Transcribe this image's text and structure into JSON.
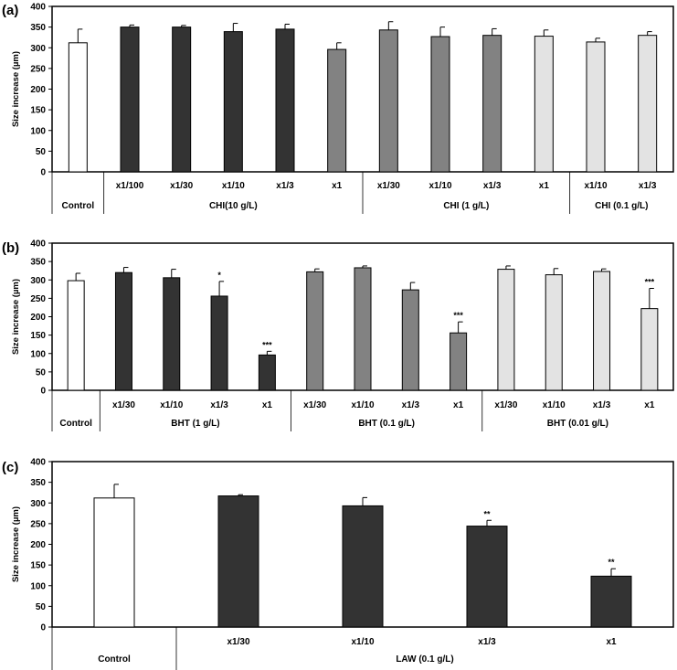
{
  "colors": {
    "control": "#ffffff",
    "dark": "#333333",
    "mid": "#828282",
    "light": "#e3e3e3",
    "stroke": "#000000"
  },
  "chart_data": [
    {
      "type": "bar",
      "label": "(a)",
      "ylabel": "Size increase (µm)",
      "ylim": [
        0,
        400
      ],
      "yticks": [
        0,
        50,
        100,
        150,
        200,
        250,
        300,
        350,
        400
      ],
      "bars": [
        {
          "category": "",
          "value": 312,
          "error": 33,
          "color": "control",
          "sig": ""
        },
        {
          "category": "x1/100",
          "value": 350,
          "error": 5,
          "color": "dark",
          "sig": ""
        },
        {
          "category": "x1/30",
          "value": 350,
          "error": 4,
          "color": "dark",
          "sig": ""
        },
        {
          "category": "x1/10",
          "value": 339,
          "error": 20,
          "color": "dark",
          "sig": ""
        },
        {
          "category": "x1/3",
          "value": 345,
          "error": 12,
          "color": "dark",
          "sig": ""
        },
        {
          "category": "x1",
          "value": 296,
          "error": 16,
          "color": "mid",
          "sig": ""
        },
        {
          "category": "x1/30",
          "value": 343,
          "error": 20,
          "color": "mid",
          "sig": ""
        },
        {
          "category": "x1/10",
          "value": 327,
          "error": 23,
          "color": "mid",
          "sig": ""
        },
        {
          "category": "x1/3",
          "value": 330,
          "error": 16,
          "color": "mid",
          "sig": ""
        },
        {
          "category": "x1",
          "value": 328,
          "error": 15,
          "color": "light",
          "sig": ""
        },
        {
          "category": "x1/10",
          "value": 314,
          "error": 9,
          "color": "light",
          "sig": ""
        },
        {
          "category": "x1/3",
          "value": 330,
          "error": 9,
          "color": "light",
          "sig": ""
        }
      ],
      "groups": [
        {
          "label": "Control",
          "start": 0,
          "end": 0
        },
        {
          "label": "CHI(10 g/L)",
          "start": 1,
          "end": 5
        },
        {
          "label": "CHI (1 g/L)",
          "start": 6,
          "end": 9
        },
        {
          "label": "CHI (0.1 g/L)",
          "start": 10,
          "end": 11
        }
      ]
    },
    {
      "type": "bar",
      "label": "(b)",
      "ylabel": "Size increase (µm)",
      "ylim": [
        0,
        400
      ],
      "yticks": [
        0,
        50,
        100,
        150,
        200,
        250,
        300,
        350,
        400
      ],
      "bars": [
        {
          "category": "",
          "value": 298,
          "error": 20,
          "color": "control",
          "sig": ""
        },
        {
          "category": "x1/30",
          "value": 320,
          "error": 14,
          "color": "dark",
          "sig": ""
        },
        {
          "category": "x1/10",
          "value": 306,
          "error": 23,
          "color": "dark",
          "sig": ""
        },
        {
          "category": "x1/3",
          "value": 256,
          "error": 40,
          "color": "dark",
          "sig": "*"
        },
        {
          "category": "x1",
          "value": 96,
          "error": 10,
          "color": "dark",
          "sig": "***"
        },
        {
          "category": "x1/30",
          "value": 322,
          "error": 8,
          "color": "mid",
          "sig": ""
        },
        {
          "category": "x1/10",
          "value": 333,
          "error": 5,
          "color": "mid",
          "sig": ""
        },
        {
          "category": "x1/3",
          "value": 273,
          "error": 20,
          "color": "mid",
          "sig": ""
        },
        {
          "category": "x1",
          "value": 156,
          "error": 30,
          "color": "mid",
          "sig": "***"
        },
        {
          "category": "x1/30",
          "value": 329,
          "error": 9,
          "color": "light",
          "sig": ""
        },
        {
          "category": "x1/10",
          "value": 314,
          "error": 17,
          "color": "light",
          "sig": ""
        },
        {
          "category": "x1/3",
          "value": 323,
          "error": 7,
          "color": "light",
          "sig": ""
        },
        {
          "category": "x1",
          "value": 222,
          "error": 55,
          "color": "light",
          "sig": "***"
        }
      ],
      "groups": [
        {
          "label": "Control",
          "start": 0,
          "end": 0
        },
        {
          "label": "BHT (1 g/L)",
          "start": 1,
          "end": 4
        },
        {
          "label": "BHT (0.1 g/L)",
          "start": 5,
          "end": 8
        },
        {
          "label": "BHT (0.01 g/L)",
          "start": 9,
          "end": 12
        }
      ]
    },
    {
      "type": "bar",
      "label": "(c)",
      "ylabel": "Size increase (µm)",
      "ylim": [
        0,
        400
      ],
      "yticks": [
        0,
        50,
        100,
        150,
        200,
        250,
        300,
        350,
        400
      ],
      "bars": [
        {
          "category": "",
          "value": 312,
          "error": 33,
          "color": "control",
          "sig": ""
        },
        {
          "category": "x1/30",
          "value": 317,
          "error": 3,
          "color": "dark",
          "sig": ""
        },
        {
          "category": "x1/10",
          "value": 293,
          "error": 20,
          "color": "dark",
          "sig": ""
        },
        {
          "category": "x1/3",
          "value": 244,
          "error": 14,
          "color": "dark",
          "sig": "**"
        },
        {
          "category": "x1",
          "value": 123,
          "error": 18,
          "color": "dark",
          "sig": "**"
        }
      ],
      "groups": [
        {
          "label": "Control",
          "start": 0,
          "end": 0
        },
        {
          "label": "LAW (0.1 g/L)",
          "start": 1,
          "end": 4
        }
      ]
    }
  ]
}
